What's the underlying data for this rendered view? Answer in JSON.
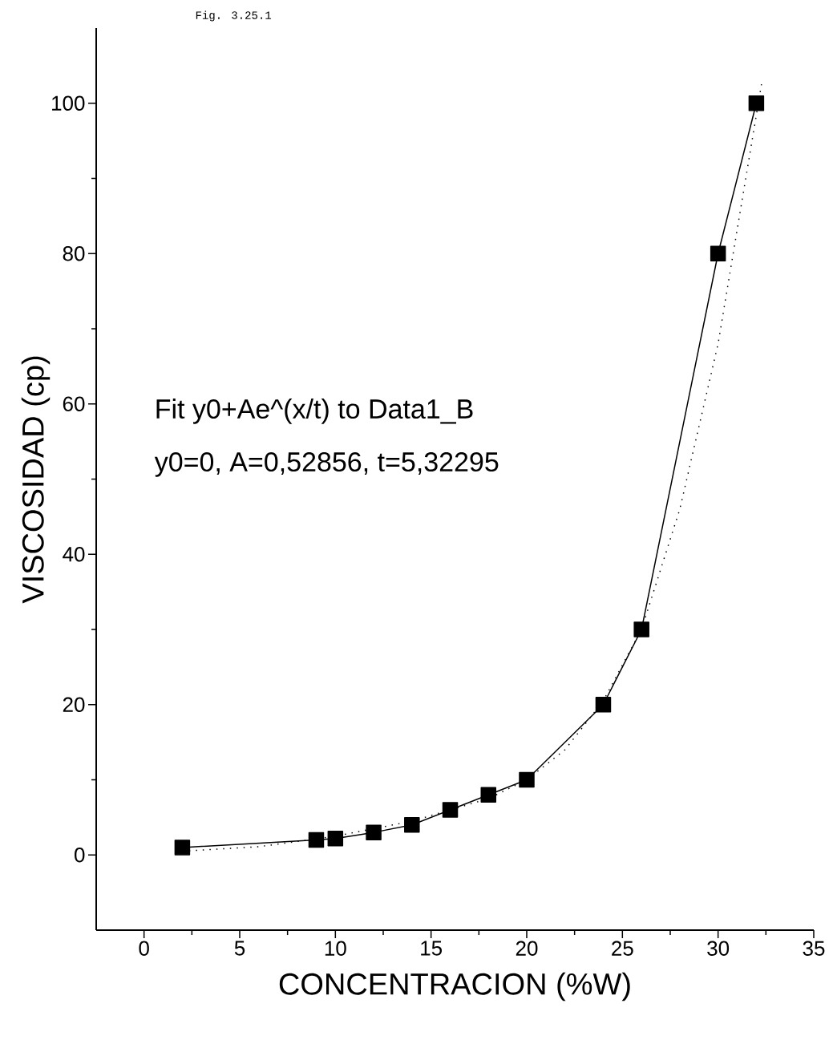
{
  "chart_data": {
    "type": "line",
    "title": "Fig. 3.25.1",
    "xlabel": "CONCENTRACION (%W)",
    "ylabel": "VISCOSIDAD (cp)",
    "annotations": [
      "Fit y0+Ae^(x/t) to Data1_B",
      "y0=0, A=0,52856, t=5,32295"
    ],
    "xlim": [
      -2.5,
      35
    ],
    "ylim": [
      -10,
      110
    ],
    "xticks": [
      0,
      5,
      10,
      15,
      20,
      25,
      30,
      35
    ],
    "yticks": [
      0,
      20,
      40,
      60,
      80,
      100
    ],
    "series": [
      {
        "color": "#000000",
        "marker": "square",
        "line_style": "solid",
        "x": [
          2,
          9,
          10,
          12,
          14,
          16,
          18,
          20,
          24,
          26,
          30,
          32
        ],
        "values": [
          1,
          2,
          2.2,
          3,
          4,
          6,
          8,
          10,
          20,
          30,
          80,
          100
        ]
      },
      {
        "type": "line",
        "color": "#000000",
        "marker": "none",
        "line_style": "dotted",
        "x": [
          2,
          6,
          10,
          14,
          18,
          20,
          22,
          24,
          26,
          28,
          30,
          32.3
        ],
        "values": [
          0.5,
          1.1,
          2.5,
          4.5,
          7.5,
          10,
          14,
          20.5,
          30,
          46,
          68,
          103
        ]
      }
    ]
  }
}
